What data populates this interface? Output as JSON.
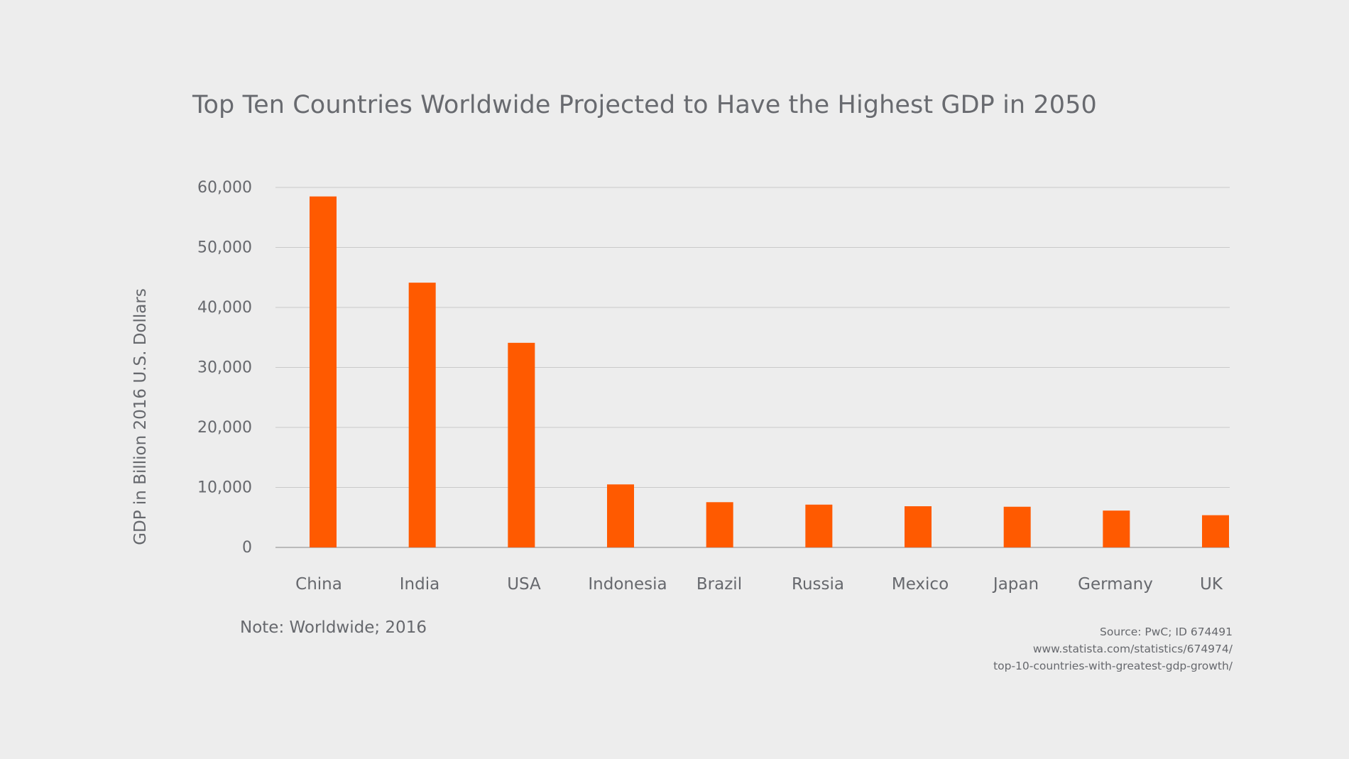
{
  "colors": {
    "background": "#ededed",
    "bar": "#ff5a00",
    "grid": "#c9c9c9",
    "text": "#66686d"
  },
  "chart_data": {
    "type": "bar",
    "title": "Top Ten Countries Worldwide Projected to Have the Highest GDP in 2050",
    "xlabel": "",
    "ylabel": "GDP in Billion 2016 U.S. Dollars",
    "categories": [
      "China",
      "India",
      "USA",
      "Indonesia",
      "Brazil",
      "Russia",
      "Mexico",
      "Japan",
      "Germany",
      "UK"
    ],
    "values": [
      58499,
      44128,
      34102,
      10502,
      7540,
      7131,
      6863,
      6779,
      6138,
      5369
    ],
    "ylim": [
      0,
      60000
    ],
    "yticks": [
      0,
      10000,
      20000,
      30000,
      40000,
      50000,
      60000
    ],
    "ytick_labels": [
      "0",
      "10,000",
      "20,000",
      "30,000",
      "40,000",
      "50,000",
      "60,000"
    ],
    "grid": true,
    "legend": "none"
  },
  "note": "Note: Worldwide; 2016",
  "source": {
    "line1": "Source: PwC; ID 674491",
    "line2": "www.statista.com/statistics/674974/",
    "line3": "top-10-countries-with-greatest-gdp-growth/"
  }
}
